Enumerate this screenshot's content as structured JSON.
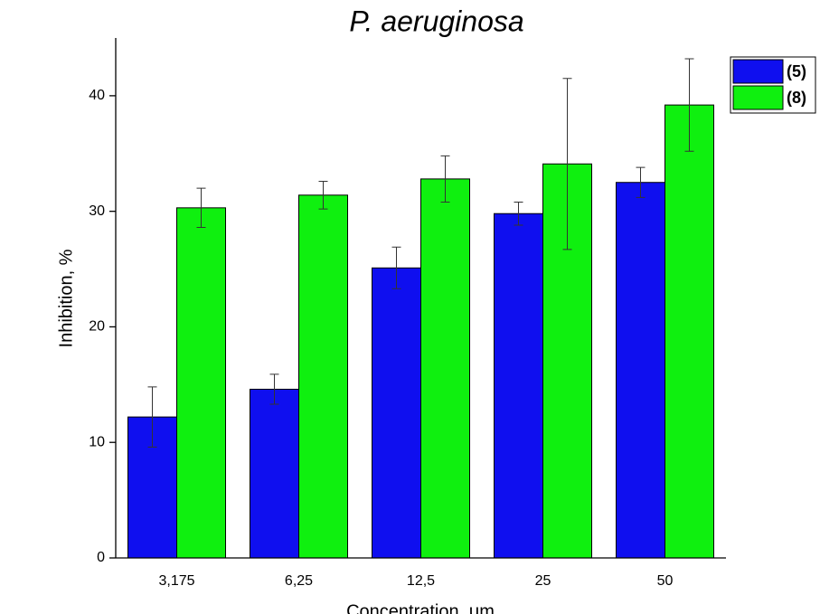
{
  "chart_data": {
    "type": "bar",
    "title": "P. aeruginosa",
    "x_label": "Concentration, μm",
    "y_label": "Inhibition, %",
    "categories": [
      "3,175",
      "6,25",
      "12,5",
      "25",
      "50"
    ],
    "series": [
      {
        "name": "(5)",
        "color": "#0f0fef",
        "values": [
          12.2,
          14.6,
          25.1,
          29.8,
          32.5
        ],
        "errors": [
          2.6,
          1.3,
          1.8,
          1.0,
          1.3
        ]
      },
      {
        "name": "(8)",
        "color": "#0ff00f",
        "values": [
          30.3,
          31.4,
          32.8,
          34.1,
          39.2
        ],
        "errors": [
          1.7,
          1.2,
          2.0,
          7.4,
          4.0
        ]
      }
    ],
    "ylim": [
      0,
      45
    ],
    "yticks": [
      0,
      10,
      20,
      30,
      40
    ],
    "legend": "top-right"
  }
}
